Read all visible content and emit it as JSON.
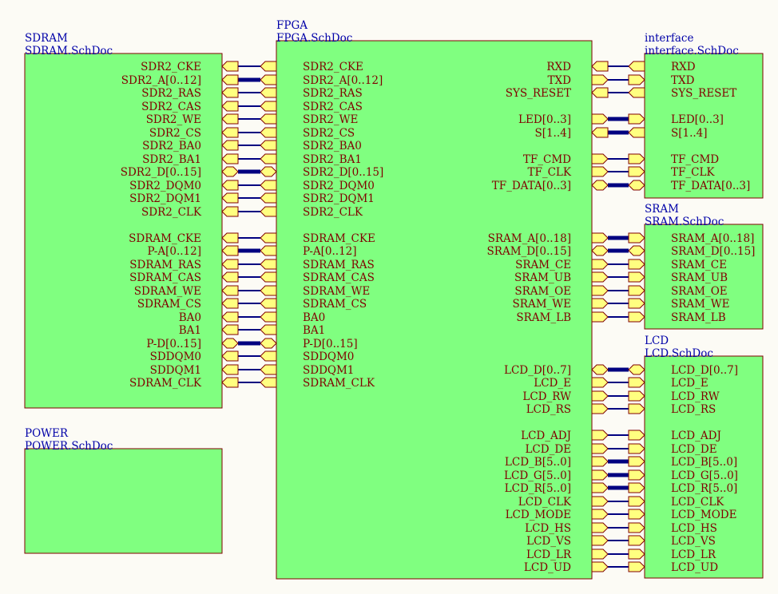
{
  "colors": {
    "background": "#fcfbf5",
    "sheet_fill": "#80ff80",
    "sheet_border": "#800000",
    "text_blue": "#0000a8",
    "port_label": "#800000",
    "port_fill": "#ffff80",
    "wire": "#000080"
  },
  "sheets": [
    {
      "id": "sdram",
      "name": "SDRAM",
      "file": "SDRAM.SchDoc",
      "ports": [
        {
          "label": "SDR2_CKE",
          "dir": "in"
        },
        {
          "label": "SDR2_A[0..12]",
          "dir": "in"
        },
        {
          "label": "SDR2_RAS",
          "dir": "in"
        },
        {
          "label": "SDR2_CAS",
          "dir": "in"
        },
        {
          "label": "SDR2_WE",
          "dir": "in"
        },
        {
          "label": "SDR2_CS",
          "dir": "in"
        },
        {
          "label": "SDR2_BA0",
          "dir": "in"
        },
        {
          "label": "SDR2_BA1",
          "dir": "in"
        },
        {
          "label": "SDR2_D[0..15]",
          "dir": "io"
        },
        {
          "label": "SDR2_DQM0",
          "dir": "in"
        },
        {
          "label": "SDR2_DQM1",
          "dir": "in"
        },
        {
          "label": "SDR2_CLK",
          "dir": "in"
        },
        {
          "label": "SDRAM_CKE",
          "dir": "in"
        },
        {
          "label": "P-A[0..12]",
          "dir": "in"
        },
        {
          "label": "SDRAM_RAS",
          "dir": "in"
        },
        {
          "label": "SDRAM_CAS",
          "dir": "in"
        },
        {
          "label": "SDRAM_WE",
          "dir": "in"
        },
        {
          "label": "SDRAM_CS",
          "dir": "in"
        },
        {
          "label": "BA0",
          "dir": "in"
        },
        {
          "label": "BA1",
          "dir": "in"
        },
        {
          "label": "P-D[0..15]",
          "dir": "io"
        },
        {
          "label": "SDDQM0",
          "dir": "in"
        },
        {
          "label": "SDDQM1",
          "dir": "in"
        },
        {
          "label": "SDRAM_CLK",
          "dir": "in"
        }
      ]
    },
    {
      "id": "power",
      "name": "POWER",
      "file": "POWER.SchDoc",
      "ports": []
    },
    {
      "id": "fpga",
      "name": "FPGA",
      "file": "FPGA.SchDoc",
      "left_ports": [
        {
          "label": "SDR2_CKE",
          "dir": "out"
        },
        {
          "label": "SDR2_A[0..12]",
          "dir": "out"
        },
        {
          "label": "SDR2_RAS",
          "dir": "out"
        },
        {
          "label": "SDR2_CAS",
          "dir": "out"
        },
        {
          "label": "SDR2_WE",
          "dir": "out"
        },
        {
          "label": "SDR2_CS",
          "dir": "out"
        },
        {
          "label": "SDR2_BA0",
          "dir": "out"
        },
        {
          "label": "SDR2_BA1",
          "dir": "out"
        },
        {
          "label": "SDR2_D[0..15]",
          "dir": "io"
        },
        {
          "label": "SDR2_DQM0",
          "dir": "out"
        },
        {
          "label": "SDR2_DQM1",
          "dir": "out"
        },
        {
          "label": "SDR2_CLK",
          "dir": "out"
        },
        {
          "label": "SDRAM_CKE",
          "dir": "out"
        },
        {
          "label": "P-A[0..12]",
          "dir": "out"
        },
        {
          "label": "SDRAM_RAS",
          "dir": "out"
        },
        {
          "label": "SDRAM_CAS",
          "dir": "out"
        },
        {
          "label": "SDRAM_WE",
          "dir": "out"
        },
        {
          "label": "SDRAM_CS",
          "dir": "out"
        },
        {
          "label": "BA0",
          "dir": "out"
        },
        {
          "label": "BA1",
          "dir": "out"
        },
        {
          "label": "P-D[0..15]",
          "dir": "io"
        },
        {
          "label": "SDDQM0",
          "dir": "out"
        },
        {
          "label": "SDDQM1",
          "dir": "out"
        },
        {
          "label": "SDRAM_CLK",
          "dir": "out"
        }
      ],
      "right_ports": [
        {
          "label": "RXD",
          "dir": "in"
        },
        {
          "label": "TXD",
          "dir": "out"
        },
        {
          "label": "SYS_RESET",
          "dir": "in"
        },
        {
          "label": "LED[0..3]",
          "dir": "out"
        },
        {
          "label": "S[1..4]",
          "dir": "in"
        },
        {
          "label": "TF_CMD",
          "dir": "out"
        },
        {
          "label": "TF_CLK",
          "dir": "out"
        },
        {
          "label": "TF_DATA[0..3]",
          "dir": "io"
        },
        {
          "label": "SRAM_A[0..18]",
          "dir": "out"
        },
        {
          "label": "SRAM_D[0..15]",
          "dir": "io"
        },
        {
          "label": "SRAM_CE",
          "dir": "out"
        },
        {
          "label": "SRAM_UB",
          "dir": "out"
        },
        {
          "label": "SRAM_OE",
          "dir": "out"
        },
        {
          "label": "SRAM_WE",
          "dir": "out"
        },
        {
          "label": "SRAM_LB",
          "dir": "out"
        },
        {
          "label": "LCD_D[0..7]",
          "dir": "io"
        },
        {
          "label": "LCD_E",
          "dir": "out"
        },
        {
          "label": "LCD_RW",
          "dir": "out"
        },
        {
          "label": "LCD_RS",
          "dir": "out"
        },
        {
          "label": "LCD_ADJ",
          "dir": "out"
        },
        {
          "label": "LCD_DE",
          "dir": "out"
        },
        {
          "label": "LCD_B[5..0]",
          "dir": "out"
        },
        {
          "label": "LCD_G[5..0]",
          "dir": "out"
        },
        {
          "label": "LCD_R[5..0]",
          "dir": "out"
        },
        {
          "label": "LCD_CLK",
          "dir": "out"
        },
        {
          "label": "LCD_MODE",
          "dir": "out"
        },
        {
          "label": "LCD_HS",
          "dir": "out"
        },
        {
          "label": "LCD_VS",
          "dir": "out"
        },
        {
          "label": "LCD_LR",
          "dir": "out"
        },
        {
          "label": "LCD_UD",
          "dir": "out"
        }
      ]
    },
    {
      "id": "interface",
      "name": "interface",
      "file": "interface.SchDoc",
      "ports": [
        {
          "label": "RXD",
          "dir": "out"
        },
        {
          "label": "TXD",
          "dir": "in"
        },
        {
          "label": "SYS_RESET",
          "dir": "out"
        },
        {
          "label": "LED[0..3]",
          "dir": "in"
        },
        {
          "label": "S[1..4]",
          "dir": "out"
        },
        {
          "label": "TF_CMD",
          "dir": "in"
        },
        {
          "label": "TF_CLK",
          "dir": "in"
        },
        {
          "label": "TF_DATA[0..3]",
          "dir": "io"
        }
      ]
    },
    {
      "id": "sram",
      "name": "SRAM",
      "file": "SRAM.SchDoc",
      "ports": [
        {
          "label": "SRAM_A[0..18]",
          "dir": "in"
        },
        {
          "label": "SRAM_D[0..15]",
          "dir": "io"
        },
        {
          "label": "SRAM_CE",
          "dir": "in"
        },
        {
          "label": "SRAM_UB",
          "dir": "in"
        },
        {
          "label": "SRAM_OE",
          "dir": "in"
        },
        {
          "label": "SRAM_WE",
          "dir": "in"
        },
        {
          "label": "SRAM_LB",
          "dir": "in"
        }
      ]
    },
    {
      "id": "lcd",
      "name": "LCD",
      "file": "LCD.SchDoc",
      "ports": [
        {
          "label": "LCD_D[0..7]",
          "dir": "io"
        },
        {
          "label": "LCD_E",
          "dir": "in"
        },
        {
          "label": "LCD_RW",
          "dir": "in"
        },
        {
          "label": "LCD_RS",
          "dir": "in"
        },
        {
          "label": "LCD_ADJ",
          "dir": "in"
        },
        {
          "label": "LCD_DE",
          "dir": "in"
        },
        {
          "label": "LCD_B[5..0]",
          "dir": "in"
        },
        {
          "label": "LCD_G[5..0]",
          "dir": "in"
        },
        {
          "label": "LCD_R[5..0]",
          "dir": "in"
        },
        {
          "label": "LCD_CLK",
          "dir": "in"
        },
        {
          "label": "LCD_MODE",
          "dir": "in"
        },
        {
          "label": "LCD_HS",
          "dir": "in"
        },
        {
          "label": "LCD_VS",
          "dir": "in"
        },
        {
          "label": "LCD_LR",
          "dir": "in"
        },
        {
          "label": "LCD_UD",
          "dir": "in"
        }
      ]
    }
  ]
}
